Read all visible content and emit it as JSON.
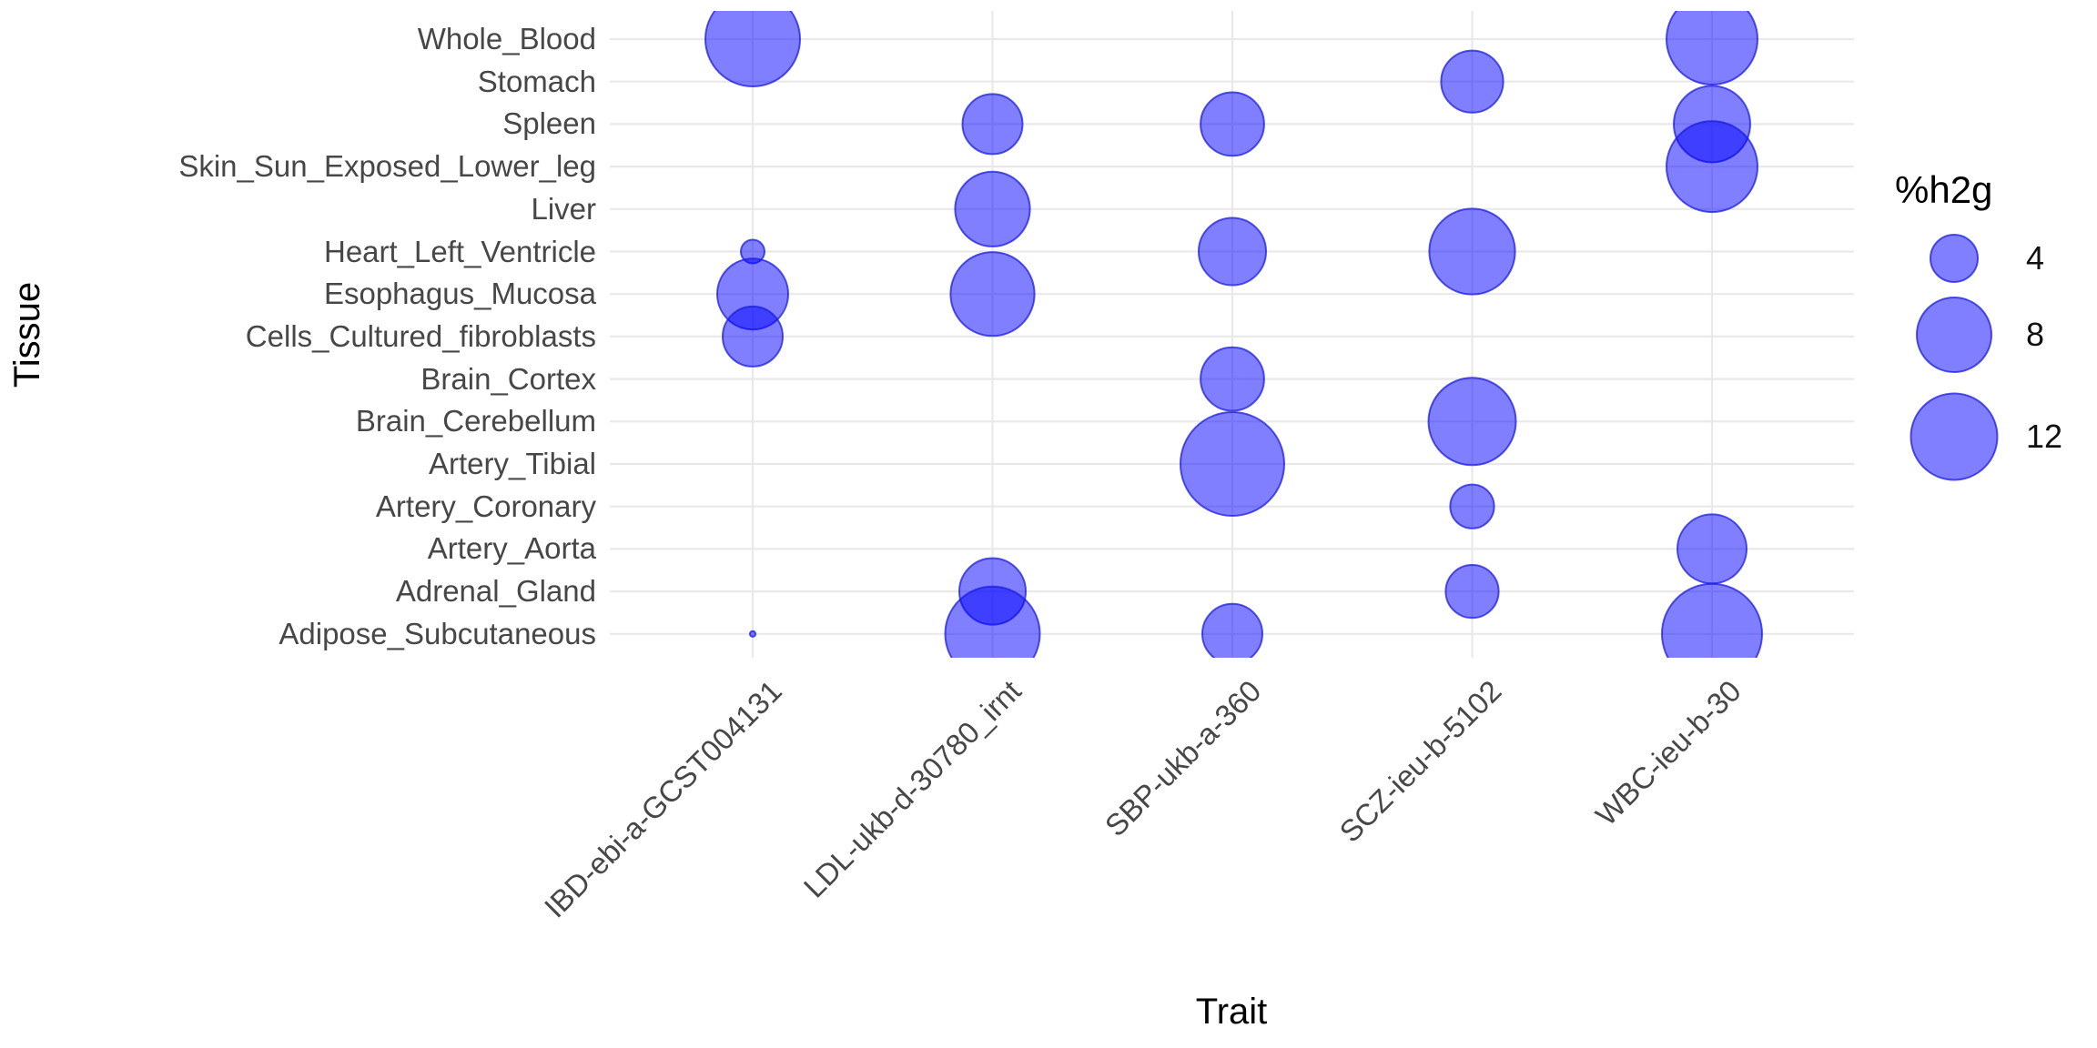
{
  "figure": {
    "y_axis_title": "Tissue",
    "x_axis_title": "Trait",
    "legend": {
      "title": "%h2g",
      "entries": [
        {
          "label": "4",
          "value": 4,
          "r": 26
        },
        {
          "label": "8",
          "value": 8,
          "r": 41
        },
        {
          "label": "12",
          "value": 12,
          "r": 47.5
        }
      ]
    }
  },
  "chart_data": {
    "type": "scatter",
    "subtype": "bubble",
    "title": "",
    "xlabel": "Trait",
    "ylabel": "Tissue",
    "size_label": "%h2g",
    "grid": true,
    "legend_position": "right",
    "x_categories": [
      "IBD-ebi-a-GCST004131",
      "LDL-ukb-d-30780_irnt",
      "SBP-ukb-a-360",
      "SCZ-ieu-b-5102",
      "WBC-ieu-b-30"
    ],
    "y_categories": [
      "Whole_Blood",
      "Stomach",
      "Spleen",
      "Skin_Sun_Exposed_Lower_leg",
      "Liver",
      "Heart_Left_Ventricle",
      "Esophagus_Mucosa",
      "Cells_Cultured_fibroblasts",
      "Brain_Cortex",
      "Brain_Cerebellum",
      "Artery_Tibial",
      "Artery_Coronary",
      "Artery_Aorta",
      "Adrenal_Gland",
      "Adipose_Subcutaneous"
    ],
    "points": [
      {
        "trait": "IBD-ebi-a-GCST004131",
        "tissue": "Whole_Blood",
        "h2g": 14.4
      },
      {
        "trait": "IBD-ebi-a-GCST004131",
        "tissue": "Heart_Left_Ventricle",
        "h2g": 0.9
      },
      {
        "trait": "IBD-ebi-a-GCST004131",
        "tissue": "Esophagus_Mucosa",
        "h2g": 8.1
      },
      {
        "trait": "IBD-ebi-a-GCST004131",
        "tissue": "Cells_Cultured_fibroblasts",
        "h2g": 5.8
      },
      {
        "trait": "IBD-ebi-a-GCST004131",
        "tissue": "Adipose_Subcutaneous",
        "h2g": 0.05
      },
      {
        "trait": "LDL-ukb-d-30780_irnt",
        "tissue": "Spleen",
        "h2g": 5.8
      },
      {
        "trait": "LDL-ukb-d-30780_irnt",
        "tissue": "Liver",
        "h2g": 9.0
      },
      {
        "trait": "LDL-ukb-d-30780_irnt",
        "tissue": "Esophagus_Mucosa",
        "h2g": 11.3
      },
      {
        "trait": "LDL-ukb-d-30780_irnt",
        "tissue": "Adrenal_Gland",
        "h2g": 7.1
      },
      {
        "trait": "LDL-ukb-d-30780_irnt",
        "tissue": "Adipose_Subcutaneous",
        "h2g": 14.4
      },
      {
        "trait": "SBP-ukb-a-360",
        "tissue": "Spleen",
        "h2g": 6.5
      },
      {
        "trait": "SBP-ukb-a-360",
        "tissue": "Heart_Left_Ventricle",
        "h2g": 7.3
      },
      {
        "trait": "SBP-ukb-a-360",
        "tissue": "Brain_Cortex",
        "h2g": 6.5
      },
      {
        "trait": "SBP-ukb-a-360",
        "tissue": "Artery_Tibial",
        "h2g": 17.3
      },
      {
        "trait": "SBP-ukb-a-360",
        "tissue": "Adipose_Subcutaneous",
        "h2g": 5.8
      },
      {
        "trait": "SCZ-ieu-b-5102",
        "tissue": "Stomach",
        "h2g": 6.2
      },
      {
        "trait": "SCZ-ieu-b-5102",
        "tissue": "Heart_Left_Ventricle",
        "h2g": 11.8
      },
      {
        "trait": "SCZ-ieu-b-5102",
        "tissue": "Brain_Cerebellum",
        "h2g": 12.3
      },
      {
        "trait": "SCZ-ieu-b-5102",
        "tissue": "Artery_Coronary",
        "h2g": 3.1
      },
      {
        "trait": "SCZ-ieu-b-5102",
        "tissue": "Adrenal_Gland",
        "h2g": 4.5
      },
      {
        "trait": "WBC-ieu-b-30",
        "tissue": "Whole_Blood",
        "h2g": 13.3
      },
      {
        "trait": "WBC-ieu-b-30",
        "tissue": "Spleen",
        "h2g": 9.4
      },
      {
        "trait": "WBC-ieu-b-30",
        "tissue": "Skin_Sun_Exposed_Lower_leg",
        "h2g": 13.3
      },
      {
        "trait": "WBC-ieu-b-30",
        "tissue": "Artery_Aorta",
        "h2g": 7.7
      },
      {
        "trait": "WBC-ieu-b-30",
        "tissue": "Adipose_Subcutaneous",
        "h2g": 16.1
      }
    ],
    "colors": {
      "bubble_fill": "#0000ff",
      "bubble_stroke": "#1c1cdd",
      "gridline": "#e9e9e9",
      "axis_text": "#474747",
      "title_text": "#000000"
    }
  }
}
